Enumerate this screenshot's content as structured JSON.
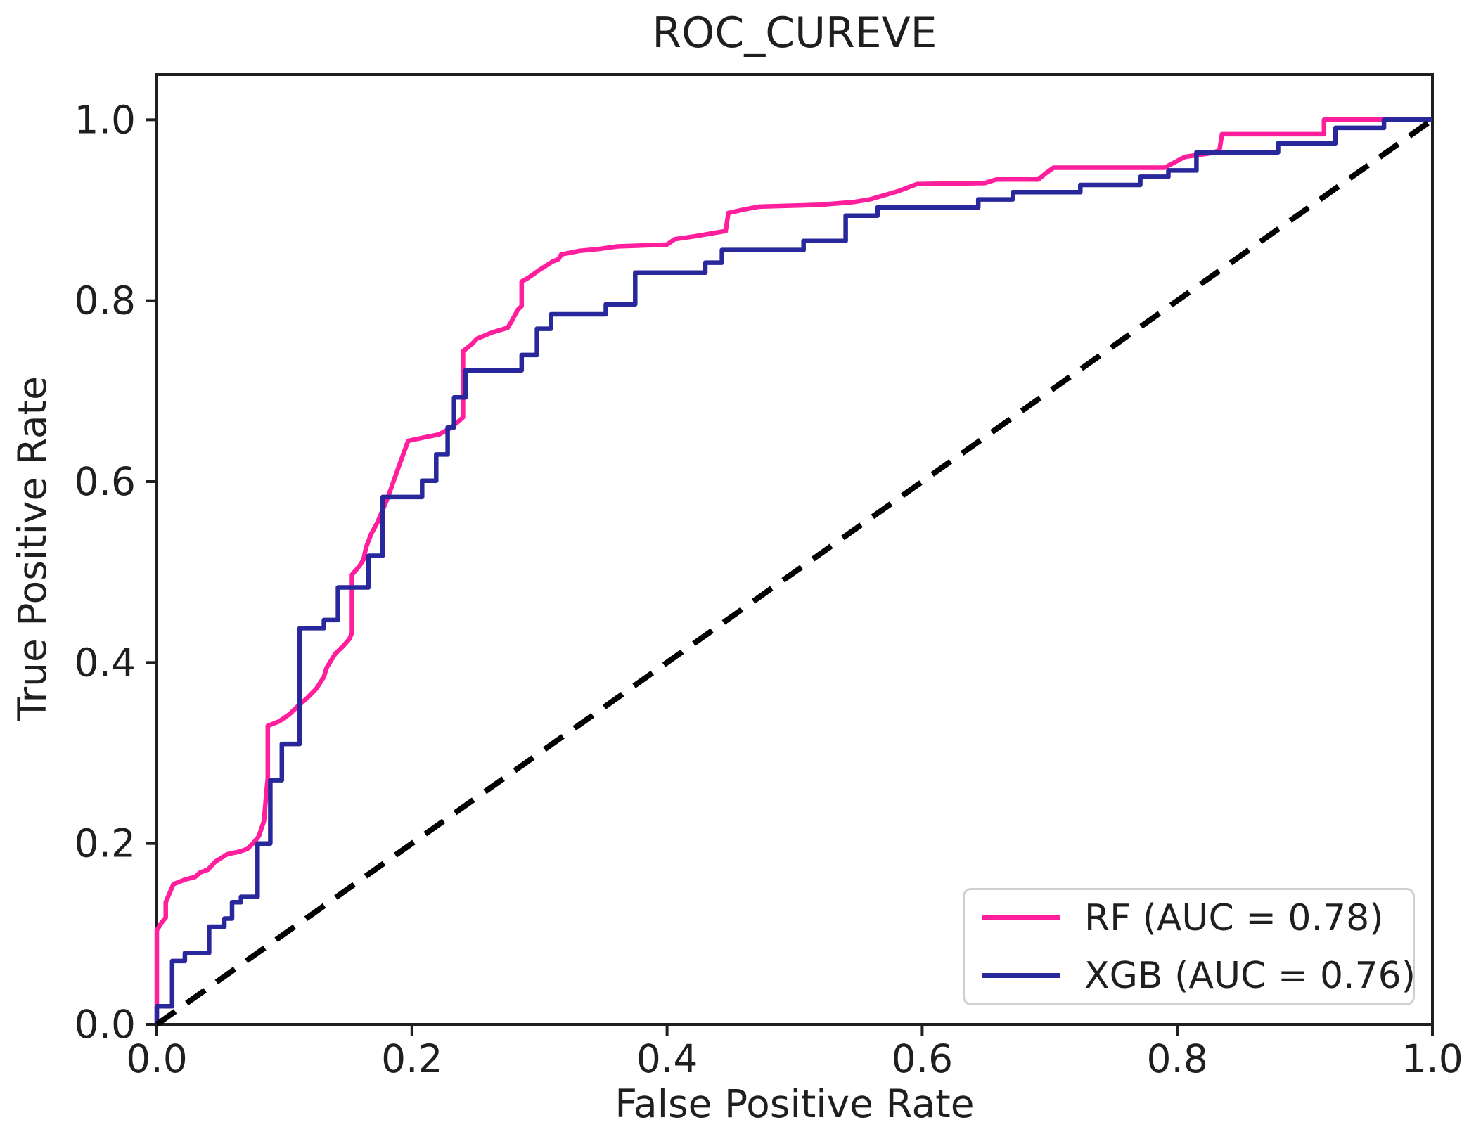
{
  "title": "ROC_CUREVE",
  "colors": {
    "rf": "#ff1e9c",
    "xgb": "#28289c",
    "diagonal": "#000000",
    "axis": "#1f1f1f",
    "legend_border": "#cfcfcf"
  },
  "legend": {
    "position": "lower right",
    "entries": [
      {
        "label": "RF (AUC = 0.78)"
      },
      {
        "label": "XGB (AUC = 0.76)"
      }
    ]
  },
  "chart_data": {
    "type": "line",
    "title": "ROC_CUREVE",
    "xlabel": "False Positive Rate",
    "ylabel": "True Positive Rate",
    "xlim": [
      0,
      1
    ],
    "ylim": [
      0,
      1.05
    ],
    "grid": false,
    "legend_position": "lower right",
    "x_ticks": [
      0.0,
      0.2,
      0.4,
      0.6,
      0.8,
      1.0
    ],
    "x_tick_labels": [
      "0.0",
      "0.2",
      "0.4",
      "0.6",
      "0.8",
      "1.0"
    ],
    "y_ticks": [
      0.0,
      0.2,
      0.4,
      0.6,
      0.8,
      1.0
    ],
    "y_tick_labels": [
      "0.0",
      "0.2",
      "0.4",
      "0.6",
      "0.8",
      "1.0"
    ],
    "series": [
      {
        "name": "RF",
        "label": "RF (AUC = 0.78)",
        "auc": 0.78,
        "color": "#ff1e9c",
        "style": "solid",
        "points": [
          [
            0.0,
            0.0
          ],
          [
            0.0,
            0.104
          ],
          [
            0.004,
            0.113
          ],
          [
            0.007,
            0.118
          ],
          [
            0.007,
            0.135
          ],
          [
            0.013,
            0.155
          ],
          [
            0.022,
            0.16
          ],
          [
            0.03,
            0.163
          ],
          [
            0.034,
            0.168
          ],
          [
            0.04,
            0.171
          ],
          [
            0.046,
            0.18
          ],
          [
            0.055,
            0.188
          ],
          [
            0.065,
            0.191
          ],
          [
            0.071,
            0.194
          ],
          [
            0.076,
            0.201
          ],
          [
            0.08,
            0.208
          ],
          [
            0.084,
            0.225
          ],
          [
            0.086,
            0.258
          ],
          [
            0.087,
            0.272
          ],
          [
            0.087,
            0.33
          ],
          [
            0.096,
            0.335
          ],
          [
            0.104,
            0.343
          ],
          [
            0.11,
            0.351
          ],
          [
            0.118,
            0.361
          ],
          [
            0.125,
            0.371
          ],
          [
            0.131,
            0.384
          ],
          [
            0.133,
            0.394
          ],
          [
            0.14,
            0.41
          ],
          [
            0.146,
            0.418
          ],
          [
            0.151,
            0.426
          ],
          [
            0.153,
            0.433
          ],
          [
            0.153,
            0.497
          ],
          [
            0.159,
            0.507
          ],
          [
            0.162,
            0.514
          ],
          [
            0.164,
            0.527
          ],
          [
            0.168,
            0.542
          ],
          [
            0.173,
            0.555
          ],
          [
            0.181,
            0.582
          ],
          [
            0.19,
            0.618
          ],
          [
            0.197,
            0.645
          ],
          [
            0.21,
            0.649
          ],
          [
            0.221,
            0.652
          ],
          [
            0.23,
            0.659
          ],
          [
            0.236,
            0.666
          ],
          [
            0.24,
            0.671
          ],
          [
            0.24,
            0.744
          ],
          [
            0.247,
            0.752
          ],
          [
            0.251,
            0.758
          ],
          [
            0.263,
            0.765
          ],
          [
            0.275,
            0.77
          ],
          [
            0.278,
            0.777
          ],
          [
            0.283,
            0.79
          ],
          [
            0.286,
            0.794
          ],
          [
            0.286,
            0.821
          ],
          [
            0.292,
            0.826
          ],
          [
            0.3,
            0.834
          ],
          [
            0.31,
            0.843
          ],
          [
            0.315,
            0.846
          ],
          [
            0.317,
            0.851
          ],
          [
            0.331,
            0.855
          ],
          [
            0.346,
            0.857
          ],
          [
            0.361,
            0.86
          ],
          [
            0.4,
            0.862
          ],
          [
            0.406,
            0.868
          ],
          [
            0.421,
            0.871
          ],
          [
            0.446,
            0.877
          ],
          [
            0.448,
            0.897
          ],
          [
            0.461,
            0.901
          ],
          [
            0.472,
            0.904
          ],
          [
            0.52,
            0.906
          ],
          [
            0.546,
            0.909
          ],
          [
            0.559,
            0.912
          ],
          [
            0.581,
            0.921
          ],
          [
            0.596,
            0.929
          ],
          [
            0.649,
            0.93
          ],
          [
            0.658,
            0.934
          ],
          [
            0.691,
            0.934
          ],
          [
            0.697,
            0.941
          ],
          [
            0.703,
            0.947
          ],
          [
            0.79,
            0.947
          ],
          [
            0.806,
            0.959
          ],
          [
            0.826,
            0.963
          ],
          [
            0.833,
            0.966
          ],
          [
            0.835,
            0.984
          ],
          [
            0.915,
            0.984
          ],
          [
            0.915,
            1.0
          ],
          [
            1.0,
            1.0
          ]
        ]
      },
      {
        "name": "XGB",
        "label": "XGB (AUC = 0.76)",
        "auc": 0.76,
        "color": "#28289c",
        "style": "solid",
        "points": [
          [
            0.0,
            0.0
          ],
          [
            0.0,
            0.02
          ],
          [
            0.012,
            0.02
          ],
          [
            0.012,
            0.07
          ],
          [
            0.022,
            0.07
          ],
          [
            0.022,
            0.079
          ],
          [
            0.041,
            0.079
          ],
          [
            0.041,
            0.108
          ],
          [
            0.053,
            0.108
          ],
          [
            0.053,
            0.117
          ],
          [
            0.059,
            0.117
          ],
          [
            0.059,
            0.135
          ],
          [
            0.066,
            0.135
          ],
          [
            0.066,
            0.141
          ],
          [
            0.079,
            0.141
          ],
          [
            0.079,
            0.2
          ],
          [
            0.089,
            0.2
          ],
          [
            0.089,
            0.27
          ],
          [
            0.098,
            0.27
          ],
          [
            0.098,
            0.31
          ],
          [
            0.112,
            0.31
          ],
          [
            0.112,
            0.438
          ],
          [
            0.131,
            0.438
          ],
          [
            0.131,
            0.447
          ],
          [
            0.142,
            0.447
          ],
          [
            0.142,
            0.483
          ],
          [
            0.166,
            0.483
          ],
          [
            0.166,
            0.518
          ],
          [
            0.177,
            0.518
          ],
          [
            0.177,
            0.583
          ],
          [
            0.208,
            0.583
          ],
          [
            0.208,
            0.601
          ],
          [
            0.219,
            0.601
          ],
          [
            0.219,
            0.63
          ],
          [
            0.228,
            0.63
          ],
          [
            0.228,
            0.66
          ],
          [
            0.233,
            0.66
          ],
          [
            0.233,
            0.693
          ],
          [
            0.242,
            0.693
          ],
          [
            0.242,
            0.723
          ],
          [
            0.286,
            0.723
          ],
          [
            0.286,
            0.74
          ],
          [
            0.298,
            0.74
          ],
          [
            0.298,
            0.769
          ],
          [
            0.309,
            0.769
          ],
          [
            0.309,
            0.785
          ],
          [
            0.352,
            0.785
          ],
          [
            0.352,
            0.796
          ],
          [
            0.375,
            0.796
          ],
          [
            0.375,
            0.831
          ],
          [
            0.43,
            0.831
          ],
          [
            0.43,
            0.842
          ],
          [
            0.443,
            0.842
          ],
          [
            0.443,
            0.856
          ],
          [
            0.507,
            0.856
          ],
          [
            0.507,
            0.866
          ],
          [
            0.54,
            0.866
          ],
          [
            0.54,
            0.894
          ],
          [
            0.565,
            0.894
          ],
          [
            0.565,
            0.903
          ],
          [
            0.644,
            0.903
          ],
          [
            0.644,
            0.912
          ],
          [
            0.671,
            0.912
          ],
          [
            0.671,
            0.92
          ],
          [
            0.724,
            0.92
          ],
          [
            0.724,
            0.928
          ],
          [
            0.771,
            0.928
          ],
          [
            0.771,
            0.937
          ],
          [
            0.793,
            0.937
          ],
          [
            0.793,
            0.944
          ],
          [
            0.815,
            0.944
          ],
          [
            0.815,
            0.964
          ],
          [
            0.879,
            0.964
          ],
          [
            0.879,
            0.974
          ],
          [
            0.924,
            0.974
          ],
          [
            0.924,
            0.991
          ],
          [
            0.962,
            0.991
          ],
          [
            0.962,
            1.0
          ],
          [
            1.0,
            1.0
          ]
        ]
      },
      {
        "name": "chance",
        "label": "",
        "color": "#000000",
        "style": "dashed",
        "points": [
          [
            0.0,
            0.0
          ],
          [
            1.0,
            1.0
          ]
        ]
      }
    ]
  }
}
